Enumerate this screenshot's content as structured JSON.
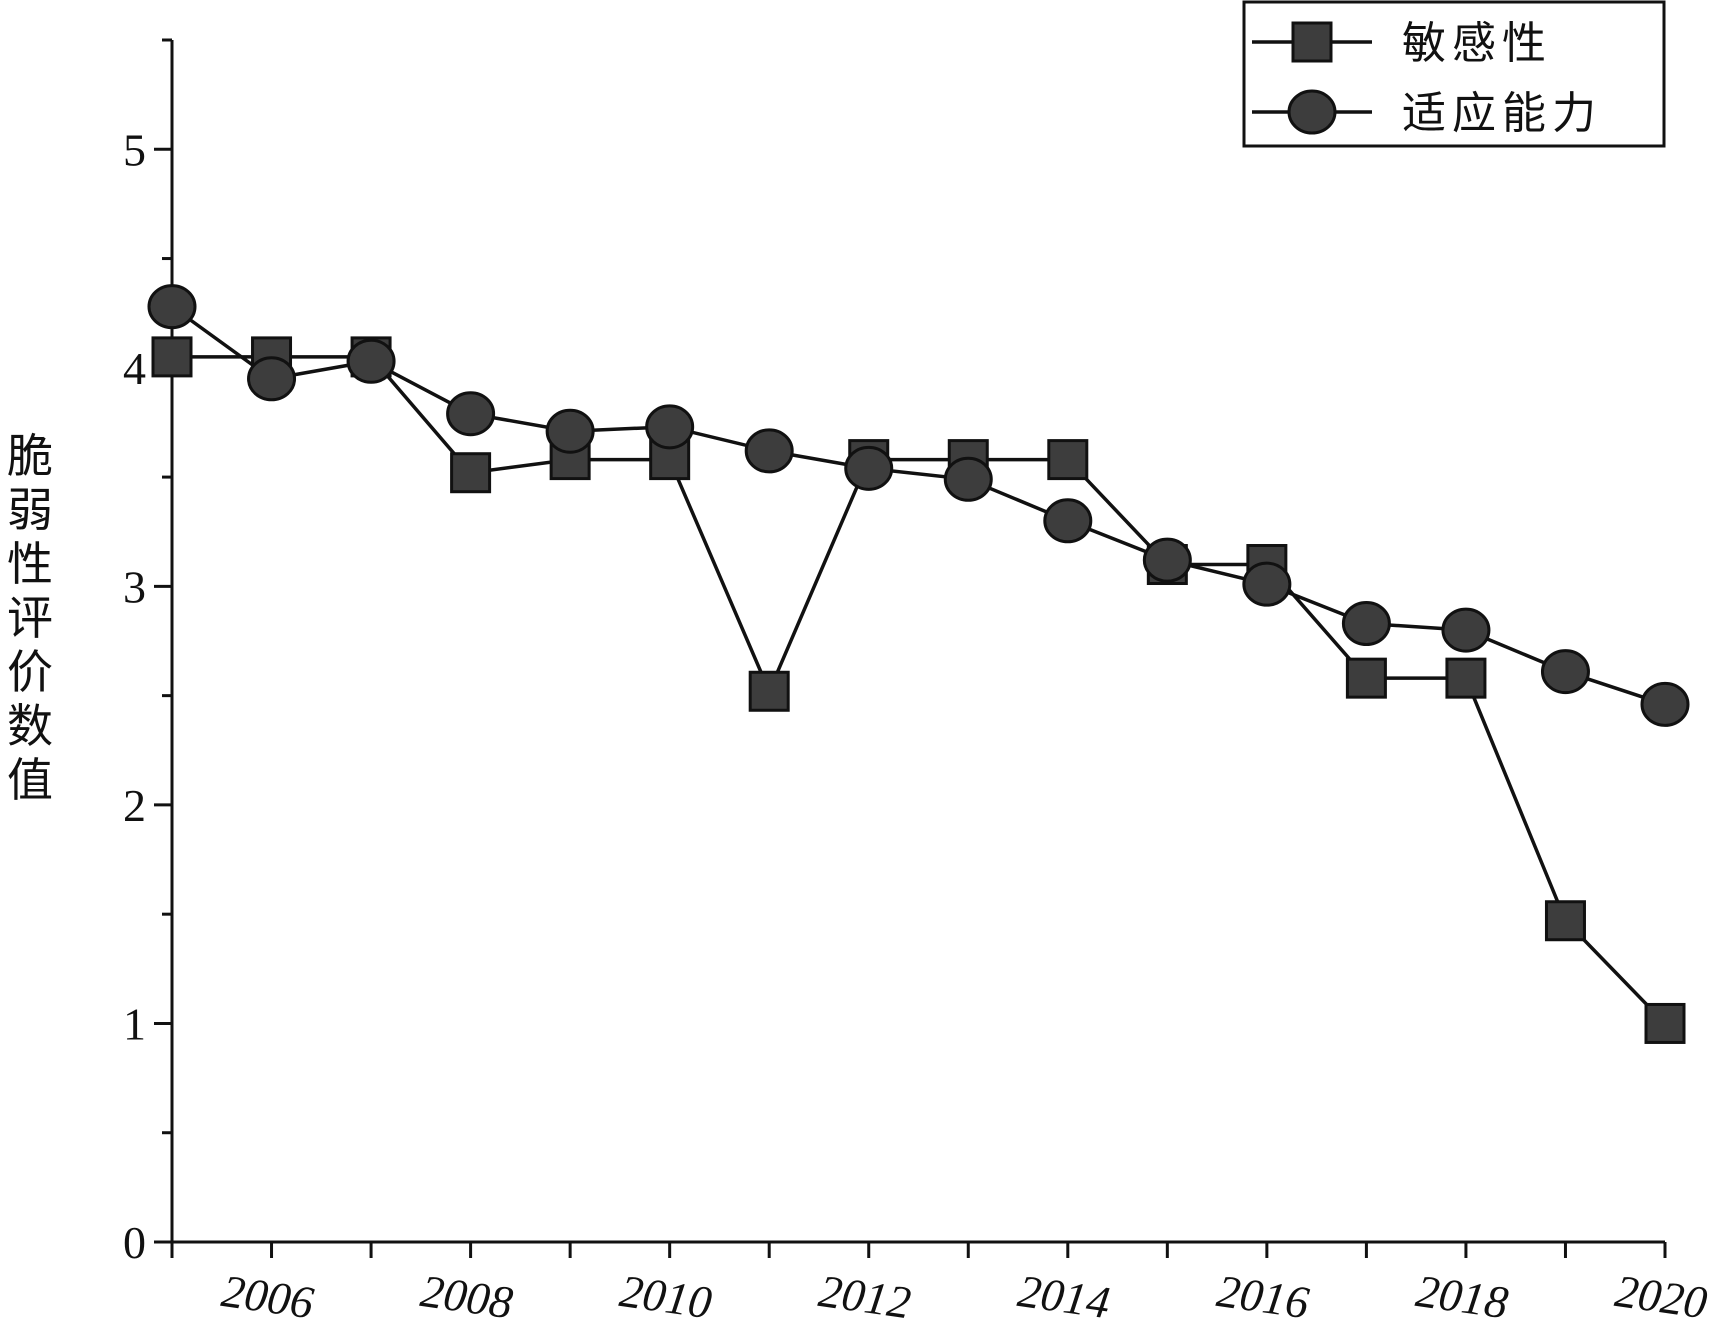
{
  "chart_data": {
    "type": "line",
    "title": "",
    "xlabel": "",
    "ylabel": "脆弱性评价数值",
    "x": [
      2005,
      2006,
      2007,
      2008,
      2009,
      2010,
      2011,
      2012,
      2013,
      2014,
      2015,
      2016,
      2017,
      2018,
      2019,
      2020
    ],
    "xticks": [
      2006,
      2008,
      2010,
      2012,
      2014,
      2016,
      2018,
      2020
    ],
    "xlim": [
      2005,
      2020
    ],
    "ylim": [
      0,
      5.5
    ],
    "yticks": [
      0,
      1,
      2,
      3,
      4,
      5
    ],
    "grid": false,
    "legend_position": "top-right",
    "series": [
      {
        "name": "敏感性",
        "marker": "square",
        "color": "#3d3d3d",
        "values": [
          4.05,
          4.05,
          4.05,
          3.52,
          3.58,
          3.58,
          2.52,
          3.58,
          3.58,
          3.58,
          3.1,
          3.1,
          2.58,
          2.58,
          1.47,
          1.0
        ]
      },
      {
        "name": "适应能力",
        "marker": "circle",
        "color": "#3d3d3d",
        "values": [
          4.28,
          3.95,
          4.03,
          3.79,
          3.71,
          3.73,
          3.62,
          3.54,
          3.49,
          3.3,
          3.12,
          3.01,
          2.83,
          2.8,
          2.61,
          2.46
        ]
      }
    ]
  }
}
